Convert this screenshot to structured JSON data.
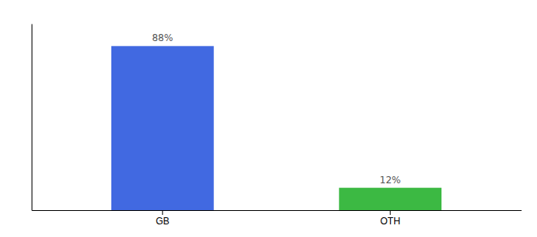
{
  "chart_data": {
    "type": "bar",
    "categories": [
      "GB",
      "OTH"
    ],
    "values": [
      88,
      12
    ],
    "value_labels": [
      "88%",
      "12%"
    ],
    "colors": [
      "#4169e1",
      "#3cb943"
    ],
    "ylim": [
      0,
      100
    ],
    "data_labels": true,
    "tick_labels": "x",
    "grid": false
  }
}
